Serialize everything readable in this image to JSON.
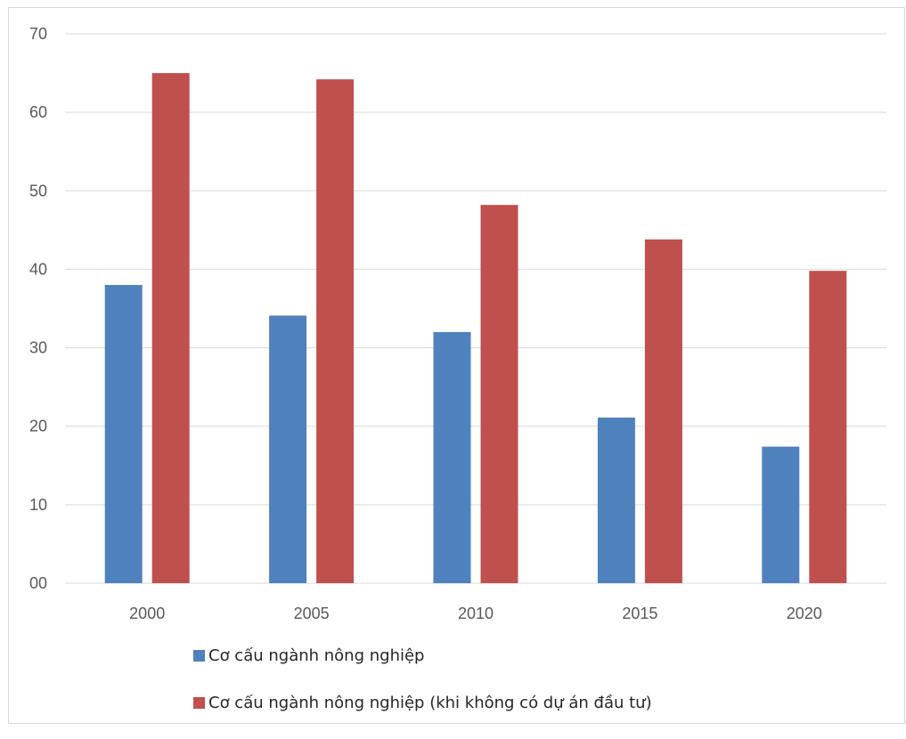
{
  "chart_data": {
    "type": "bar",
    "categories": [
      "2000",
      "2005",
      "2010",
      "2015",
      "2020"
    ],
    "series": [
      {
        "name": "Cơ cấu ngành nông nghiệp",
        "values": [
          38,
          34.1,
          32,
          21.1,
          17.4
        ],
        "color": "#4f81bd"
      },
      {
        "name": "Cơ cấu ngành nông nghiệp (khi không có dự án đầu tư)",
        "values": [
          65,
          64.2,
          48.2,
          43.8,
          39.8
        ],
        "color": "#c0504d"
      }
    ],
    "yticks": [
      "00",
      "10",
      "20",
      "30",
      "40",
      "50",
      "60",
      "70"
    ],
    "ylim": [
      0,
      70
    ],
    "grid": true,
    "gridline_color": "#d9d9d9",
    "legend_position": "bottom",
    "title": "",
    "xlabel": "",
    "ylabel": ""
  }
}
